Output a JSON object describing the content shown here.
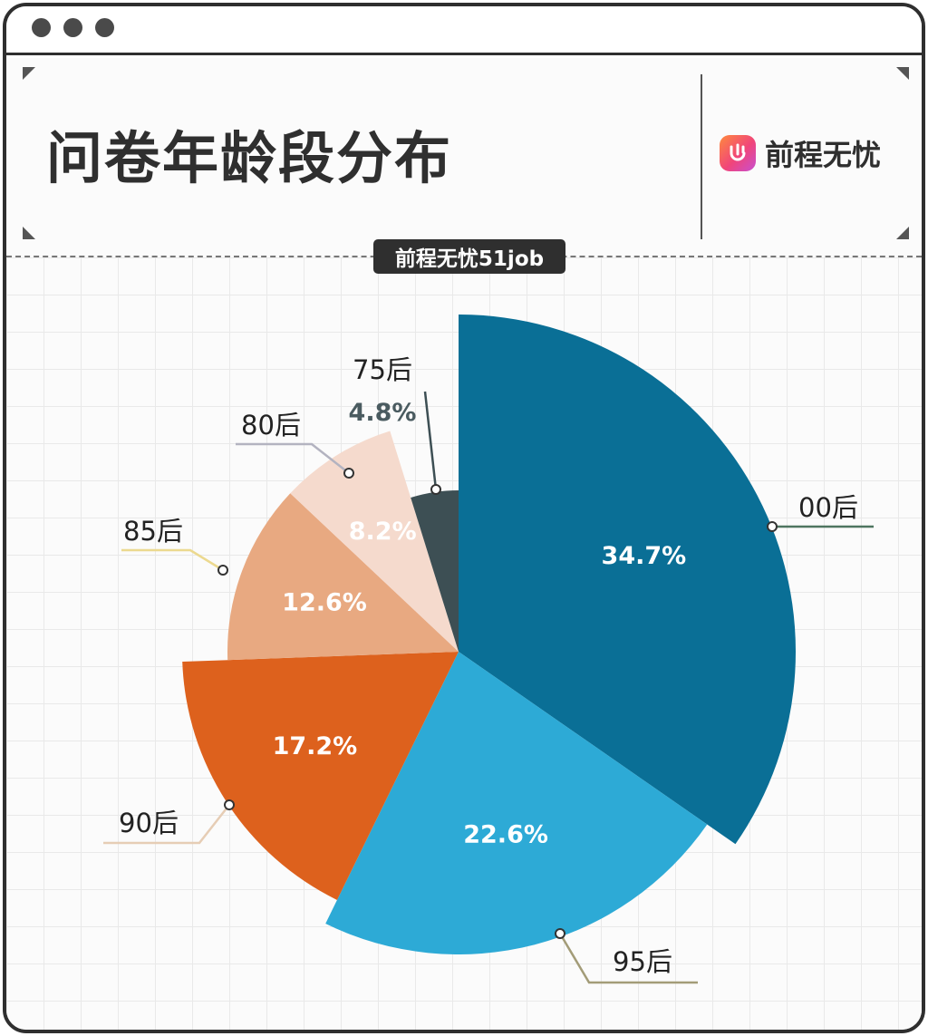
{
  "header": {
    "title": "问卷年龄段分布",
    "brand_name": "前程无忧",
    "watermark": "前程无忧51job"
  },
  "colors": {
    "frame": "#2f2f2f",
    "background": "#fbfbfb"
  },
  "chart_data": {
    "type": "pie",
    "categories": [
      "00后",
      "95后",
      "90后",
      "85后",
      "80后",
      "75后"
    ],
    "values": [
      34.7,
      22.6,
      17.2,
      12.6,
      8.2,
      4.8
    ],
    "labels": [
      "34.7%",
      "22.6%",
      "17.2%",
      "12.6%",
      "8.2%",
      "4.8%"
    ],
    "colors": [
      "#0a6f96",
      "#2daad6",
      "#dd611d",
      "#e8a981",
      "#f5dacd",
      "#3d4f54"
    ],
    "leader_colors": [
      "#4e7560",
      "#a39c78",
      "#e6cdb5",
      "#ecd98f",
      "#b3b3c0",
      "#3d4f54"
    ],
    "label_text_colors": [
      "#ffffff",
      "#ffffff",
      "#ffffff",
      "#ffffff",
      "#ffffff",
      "#4a5b60"
    ],
    "title": "",
    "legend": "leader-lines"
  }
}
